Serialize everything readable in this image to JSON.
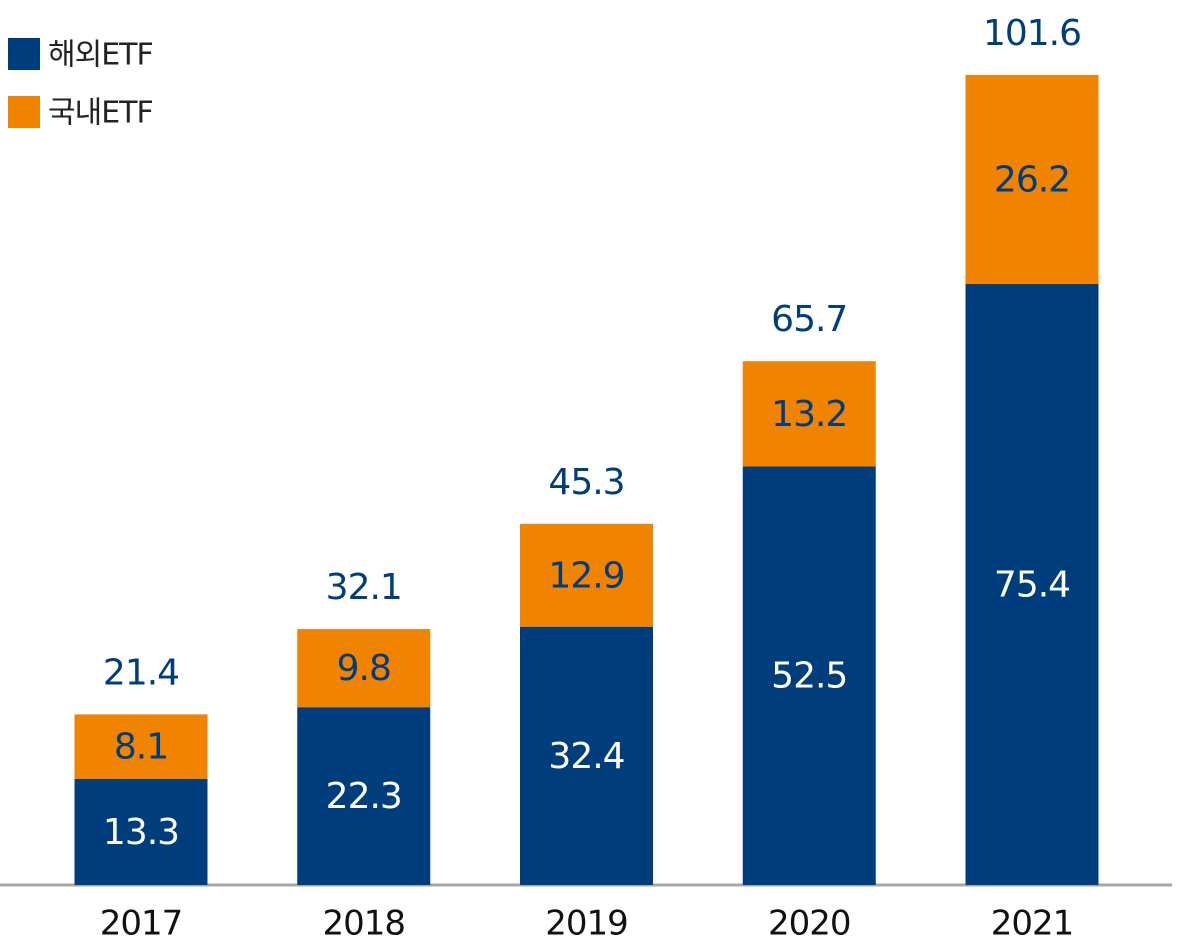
{
  "chart_data": {
    "type": "stacked_bar",
    "categories": [
      "2017",
      "2018",
      "2019",
      "2020",
      "2021"
    ],
    "series": [
      {
        "name": "해외ETF",
        "color": "#003d7c",
        "values": [
          13.3,
          22.3,
          32.4,
          52.5,
          75.4
        ]
      },
      {
        "name": "국내ETF",
        "color": "#f08300",
        "values": [
          8.1,
          9.8,
          12.9,
          13.2,
          26.2
        ]
      }
    ],
    "totals": [
      21.4,
      32.1,
      45.3,
      65.7,
      101.6
    ],
    "legend": "top-left"
  }
}
